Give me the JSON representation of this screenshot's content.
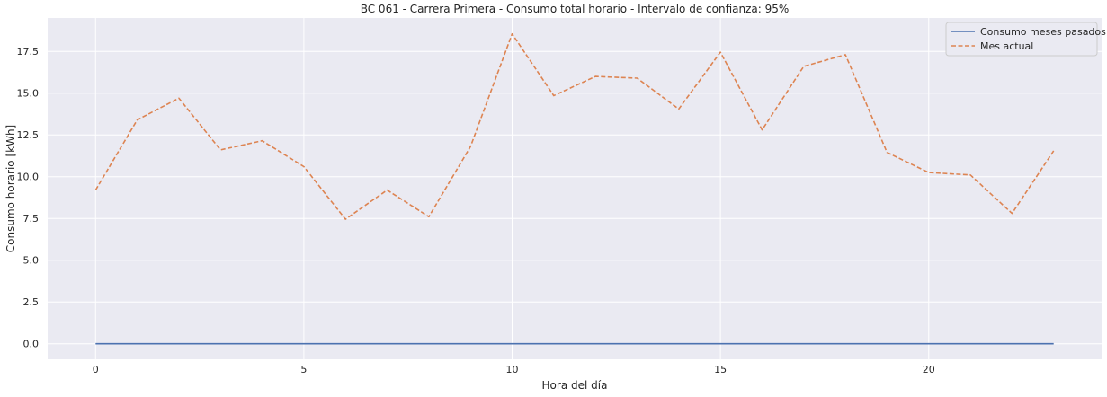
{
  "chart_data": {
    "type": "line",
    "title": "BC 061 - Carrera Primera - Consumo total horario - Intervalo de confianza: 95%",
    "xlabel": "Hora del día",
    "ylabel": "Consumo horario [kWh]",
    "xlim": [
      -1.15,
      24.15
    ],
    "ylim": [
      -0.93,
      19.5
    ],
    "xticks": [
      0,
      5,
      10,
      15,
      20
    ],
    "yticks": [
      0.0,
      2.5,
      5.0,
      7.5,
      10.0,
      12.5,
      15.0,
      17.5
    ],
    "ytick_labels": [
      "0.0",
      "2.5",
      "5.0",
      "7.5",
      "10.0",
      "12.5",
      "15.0",
      "17.5"
    ],
    "grid": true,
    "legend_position": "top-right",
    "x": [
      0,
      1,
      2,
      3,
      4,
      5,
      6,
      7,
      8,
      9,
      10,
      11,
      12,
      13,
      14,
      15,
      16,
      17,
      18,
      19,
      20,
      21,
      22,
      23
    ],
    "series": [
      {
        "name": "Consumo meses pasados",
        "color": "#4c72b0",
        "style": "solid",
        "values": [
          0,
          0,
          0,
          0,
          0,
          0,
          0,
          0,
          0,
          0,
          0,
          0,
          0,
          0,
          0,
          0,
          0,
          0,
          0,
          0,
          0,
          0,
          0,
          0
        ]
      },
      {
        "name": "Mes actual",
        "color": "#dd8452",
        "style": "dashed",
        "values": [
          9.2,
          13.4,
          14.7,
          11.6,
          12.15,
          10.6,
          7.45,
          9.2,
          7.6,
          11.8,
          18.55,
          14.85,
          16.0,
          15.9,
          14.05,
          17.45,
          12.8,
          16.6,
          17.3,
          11.45,
          10.25,
          10.1,
          7.8,
          11.55
        ]
      }
    ]
  }
}
